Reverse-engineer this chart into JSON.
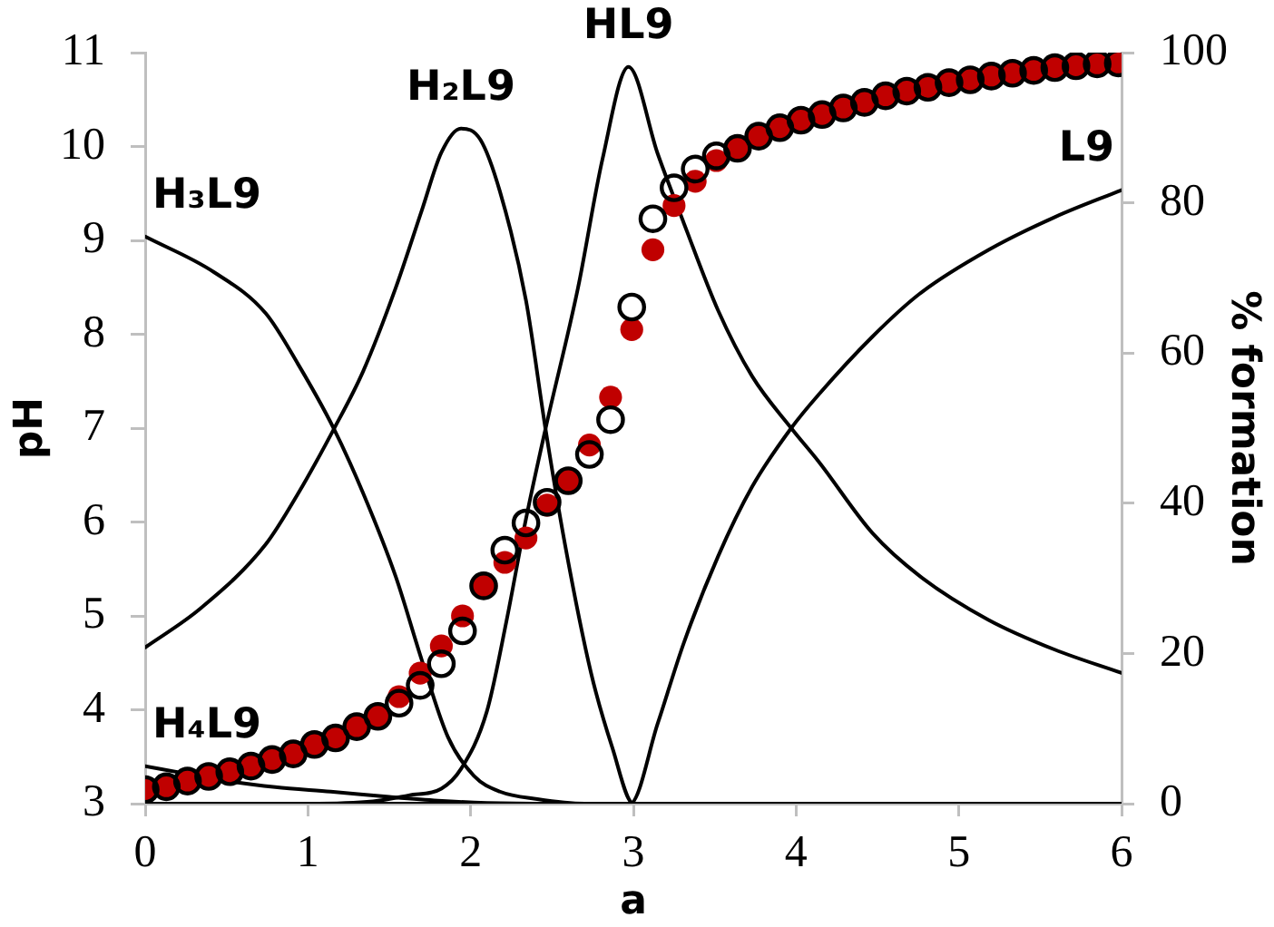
{
  "chart_data": {
    "type": "line",
    "xlabel": "a",
    "ylabel": "pH",
    "y2label": "% formation",
    "xlim": [
      0,
      6
    ],
    "xticks": [
      0,
      1,
      2,
      3,
      4,
      5,
      6
    ],
    "ylim": [
      3,
      11
    ],
    "yticks": [
      3,
      4,
      5,
      6,
      7,
      8,
      9,
      10,
      11
    ],
    "y2lim": [
      0,
      100
    ],
    "y2ticks": [
      0,
      20,
      40,
      60,
      80,
      100
    ],
    "grid": false,
    "legend": false,
    "series": [
      {
        "name": "H₄L9",
        "axis": "y2",
        "color": "#000000",
        "marker": "none",
        "x": [
          0,
          0.25,
          0.54,
          0.8,
          1.14,
          1.5,
          1.8,
          2.1,
          2.5,
          3,
          4,
          5,
          6
        ],
        "values": [
          5,
          4,
          2.9,
          2.2,
          1.6,
          0.9,
          0.4,
          0.1,
          0,
          0,
          0,
          0,
          0
        ]
      },
      {
        "name": "H₃L9",
        "axis": "y2",
        "color": "#000000",
        "marker": "none",
        "x": [
          0,
          0.42,
          0.74,
          0.94,
          1.16,
          1.34,
          1.54,
          1.7,
          1.86,
          2.02,
          2.18,
          2.41,
          2.7,
          3,
          4,
          5,
          6
        ],
        "values": [
          75.5,
          70.8,
          65.3,
          58.5,
          49.9,
          41.3,
          30.2,
          19.1,
          8.9,
          3.7,
          1.6,
          0.6,
          0,
          0,
          0,
          0,
          0
        ]
      },
      {
        "name": "H₂L9",
        "axis": "y2",
        "color": "#000000",
        "marker": "none",
        "x": [
          0,
          0.34,
          0.74,
          0.94,
          1.16,
          1.34,
          1.54,
          1.7,
          1.82,
          1.94,
          2.06,
          2.18,
          2.34,
          2.46,
          2.58,
          2.74,
          2.87,
          3.0,
          3.5,
          4,
          5,
          6
        ],
        "values": [
          20.8,
          26,
          34.5,
          41.3,
          49.9,
          57.6,
          68.7,
          79,
          86.7,
          89.9,
          88.4,
          81.5,
          67,
          49.9,
          34.5,
          17.4,
          7.5,
          0,
          0,
          0,
          0,
          0
        ]
      },
      {
        "name": "HL9",
        "axis": "y2",
        "color": "#000000",
        "marker": "none",
        "x": [
          0,
          1.0,
          1.4,
          1.62,
          1.82,
          1.94,
          2.1,
          2.22,
          2.34,
          2.46,
          2.66,
          2.81,
          2.97,
          3.15,
          3.31,
          3.52,
          3.73,
          3.97,
          4.14,
          4.47,
          4.76,
          5.18,
          5.59,
          6.0
        ],
        "values": [
          0,
          0,
          0.3,
          1.1,
          2,
          4.6,
          12.3,
          24.3,
          37.9,
          49.9,
          68.7,
          85.8,
          98.1,
          86.5,
          77.3,
          65.7,
          56.9,
          50,
          45.5,
          36,
          30.3,
          24.5,
          20.5,
          17.4
        ]
      },
      {
        "name": "L9",
        "axis": "y2",
        "color": "#000000",
        "marker": "none",
        "x": [
          0,
          2.5,
          2.98,
          3.15,
          3.31,
          3.52,
          3.73,
          3.97,
          4.14,
          4.47,
          4.76,
          5.18,
          5.59,
          6.0
        ],
        "values": [
          0,
          0,
          0,
          10.7,
          21.4,
          32.9,
          42.2,
          50,
          54.5,
          62.2,
          67.9,
          73.7,
          78.1,
          81.7
        ]
      },
      {
        "type": "scatter",
        "color": "#c00000",
        "marker": "circle",
        "x": [
          0,
          0.13,
          0.26,
          0.39,
          0.52,
          0.65,
          0.78,
          0.91,
          1.04,
          1.17,
          1.3,
          1.43,
          1.56,
          1.69,
          1.82,
          1.95,
          2.08,
          2.21,
          2.34,
          2.47,
          2.6,
          2.73,
          2.86,
          2.99,
          3.12,
          3.25,
          3.38,
          3.51,
          3.64,
          3.77,
          3.9,
          4.03,
          4.16,
          4.29,
          4.42,
          4.55,
          4.68,
          4.81,
          4.94,
          5.07,
          5.2,
          5.33,
          5.46,
          5.59,
          5.72,
          5.85,
          5.98
        ],
        "values": [
          3.15,
          3.18,
          3.24,
          3.29,
          3.34,
          3.4,
          3.47,
          3.53,
          3.63,
          3.7,
          3.82,
          3.93,
          4.14,
          4.39,
          4.68,
          5.0,
          5.32,
          5.57,
          5.83,
          6.18,
          6.44,
          6.82,
          7.33,
          8.05,
          8.9,
          9.37,
          9.63,
          9.85,
          9.98,
          10.11,
          10.2,
          10.28,
          10.34,
          10.41,
          10.47,
          10.54,
          10.59,
          10.63,
          10.68,
          10.71,
          10.75,
          10.78,
          10.81,
          10.84,
          10.86,
          10.88,
          10.89
        ]
      },
      {
        "type": "scatter",
        "color": "#000000",
        "marker": "circle",
        "x": [
          0,
          0.13,
          0.26,
          0.39,
          0.52,
          0.65,
          0.78,
          0.91,
          1.04,
          1.17,
          1.3,
          1.43,
          1.56,
          1.69,
          1.82,
          1.95,
          2.08,
          2.21,
          2.34,
          2.47,
          2.6,
          2.73,
          2.86,
          2.99,
          3.12,
          3.25,
          3.38,
          3.51,
          3.64,
          3.77,
          3.9,
          4.03,
          4.16,
          4.29,
          4.42,
          4.55,
          4.68,
          4.81,
          4.94,
          5.07,
          5.2,
          5.33,
          5.46,
          5.59,
          5.72,
          5.85,
          5.98
        ],
        "values": [
          3.15,
          3.18,
          3.24,
          3.29,
          3.34,
          3.4,
          3.47,
          3.53,
          3.63,
          3.7,
          3.82,
          3.93,
          4.07,
          4.26,
          4.49,
          4.84,
          5.32,
          5.7,
          5.99,
          6.21,
          6.44,
          6.72,
          7.09,
          8.29,
          9.23,
          9.56,
          9.76,
          9.9,
          9.98,
          10.11,
          10.2,
          10.28,
          10.34,
          10.41,
          10.47,
          10.54,
          10.59,
          10.63,
          10.68,
          10.71,
          10.75,
          10.78,
          10.81,
          10.84,
          10.86,
          10.88,
          10.89
        ]
      }
    ]
  }
}
